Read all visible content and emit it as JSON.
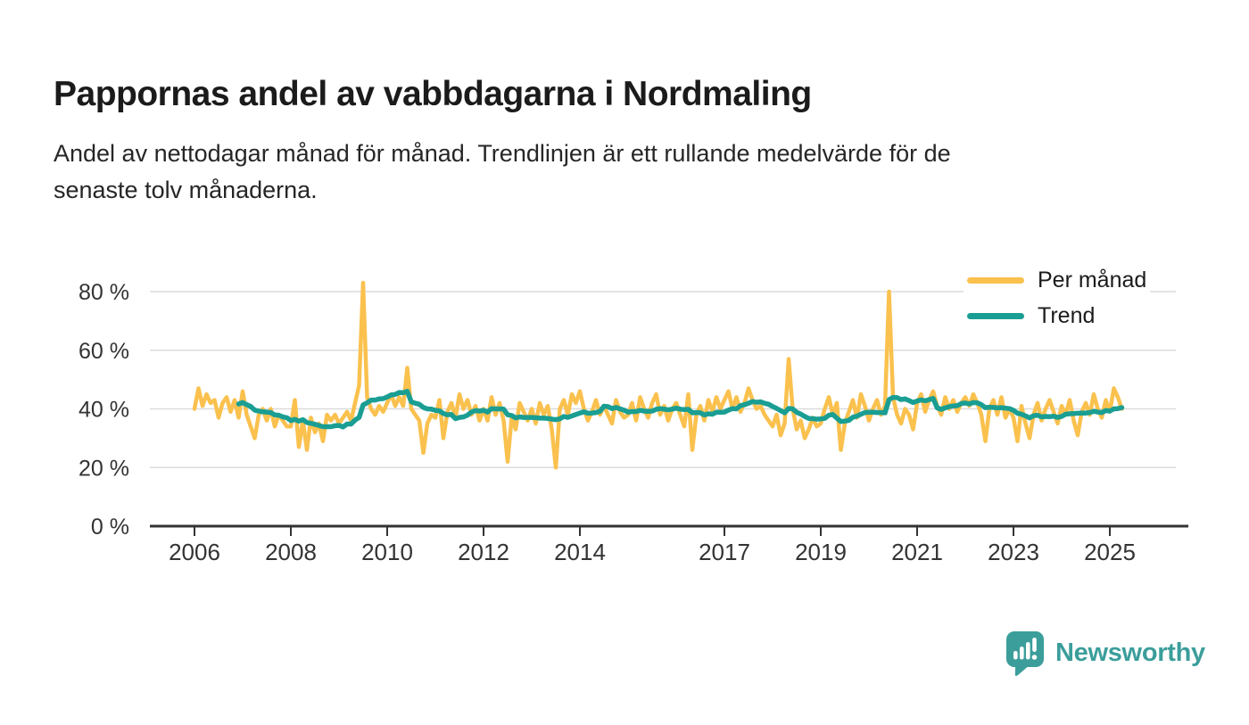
{
  "header": {
    "title": "Pappornas andel av vabbdagarna i Nordmaling",
    "subtitle_line1": "Andel av nettodagar månad för månad. Trendlinjen är ett rullande medelvärde för de",
    "subtitle_line2": "senaste tolv månaderna."
  },
  "legend": {
    "items": [
      {
        "label": "Per månad",
        "color": "#FAC14E"
      },
      {
        "label": "Trend",
        "color": "#1A9E93"
      }
    ]
  },
  "footer": {
    "brand": "Newsworthy",
    "brand_color": "#3B9E9B"
  },
  "chart_data": {
    "type": "line",
    "title": "Pappornas andel av vabbdagarna i Nordmaling",
    "unit": "%",
    "frequency": "monthly",
    "x_start": {
      "year": 2006,
      "month": 1
    },
    "x_end": {
      "year": 2025,
      "month": 4
    },
    "ylim": [
      0,
      88
    ],
    "grid": "horizontal",
    "y_ticks": [
      0,
      20,
      40,
      60,
      80
    ],
    "y_tick_suffix": " %",
    "x_ticks": [
      2006,
      2008,
      2010,
      2012,
      2014,
      2017,
      2019,
      2021,
      2023,
      2025
    ],
    "legend_position": "top-right",
    "series": [
      {
        "name": "Per månad",
        "color": "#FAC14E",
        "values": [
          40,
          47,
          41,
          45,
          42,
          43,
          37,
          42,
          44,
          39,
          43,
          37,
          46,
          38,
          34,
          30,
          38,
          40,
          36,
          40,
          34,
          38,
          36,
          34,
          34,
          43,
          27,
          36,
          26,
          37,
          32,
          35,
          29,
          38,
          36,
          38,
          35,
          37,
          39,
          36,
          42,
          48,
          83,
          44,
          40,
          38,
          41,
          39,
          42,
          45,
          41,
          44,
          41,
          54,
          40,
          38,
          36,
          25,
          35,
          38,
          37,
          43,
          30,
          39,
          42,
          37,
          45,
          40,
          43,
          38,
          41,
          36,
          40,
          36,
          44,
          38,
          42,
          36,
          22,
          37,
          33,
          42,
          39,
          36,
          40,
          35,
          42,
          38,
          41,
          33,
          20,
          40,
          43,
          38,
          45,
          42,
          46,
          40,
          36,
          39,
          43,
          38,
          41,
          38,
          35,
          43,
          39,
          37,
          38,
          42,
          36,
          44,
          40,
          37,
          42,
          45,
          38,
          41,
          36,
          40,
          42,
          38,
          34,
          45,
          26,
          38,
          41,
          36,
          43,
          39,
          44,
          40,
          43,
          46,
          40,
          44,
          39,
          42,
          47,
          43,
          40,
          41,
          38,
          36,
          34,
          38,
          31,
          35,
          57,
          40,
          33,
          36,
          30,
          33,
          37,
          34,
          35,
          40,
          44,
          38,
          42,
          26,
          35,
          39,
          43,
          37,
          45,
          41,
          36,
          40,
          43,
          38,
          41,
          80,
          44,
          38,
          35,
          40,
          38,
          33,
          42,
          45,
          39,
          43,
          46,
          41,
          38,
          44,
          40,
          43,
          39,
          42,
          44,
          41,
          45,
          42,
          38,
          29,
          40,
          43,
          38,
          44,
          37,
          40,
          37,
          29,
          41,
          35,
          30,
          38,
          42,
          36,
          40,
          43,
          39,
          35,
          41,
          38,
          43,
          36,
          31,
          39,
          42,
          38,
          45,
          40,
          37,
          43,
          39,
          47,
          44,
          40
        ]
      },
      {
        "name": "Trend",
        "color": "#1A9E93",
        "derived": "rolling mean of previous 12 months of series 'Per månad'",
        "window": 12
      }
    ]
  }
}
